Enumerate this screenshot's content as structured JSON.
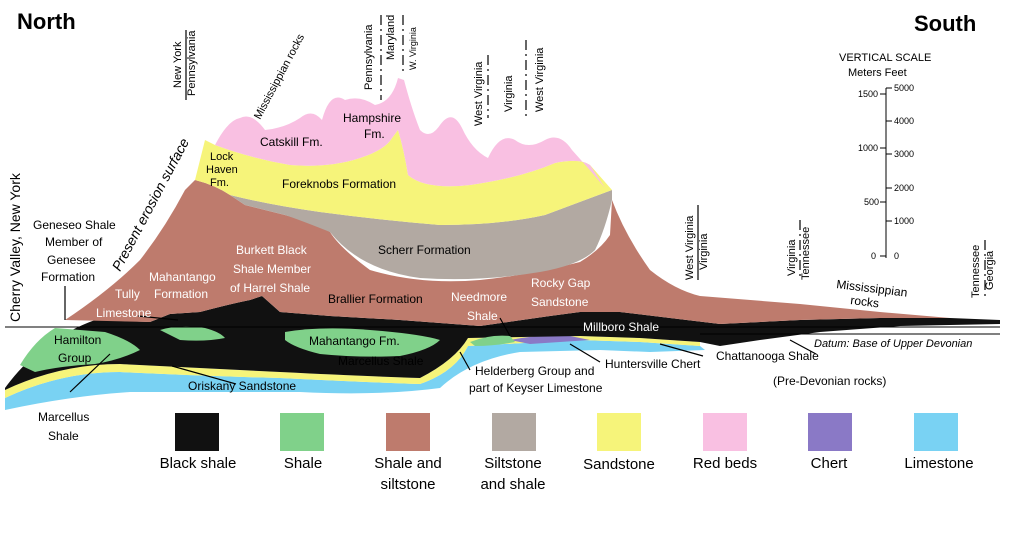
{
  "headings": {
    "north": "North",
    "south": "South"
  },
  "colors": {
    "black_shale": "#111111",
    "shale": "#80d18a",
    "shale_siltstone": "#be7b6d",
    "siltstone_shale": "#b2a9a2",
    "sandstone": "#f6f47a",
    "red_beds": "#f9c0e2",
    "chert": "#8a79c6",
    "limestone": "#79d2f3"
  },
  "boundaries": {
    "ny_pa": {
      "top": "New York",
      "bottom": "Pennsylvania"
    },
    "pa_md_wv": {
      "a": "Pennsylvania",
      "b": "Maryland",
      "c": "W. Virginia"
    },
    "wv_va_wv": {
      "a": "West Virginia",
      "b": "Virginia",
      "c": "West Virginia"
    },
    "wv_va_south": {
      "top": "West Virginia",
      "bottom": "Virginia"
    },
    "va_tn": {
      "top": "Virginia",
      "bottom": "Tennessee"
    },
    "tn_ga": {
      "top": "Tennessee",
      "bottom": "Georgia"
    }
  },
  "location": "Cherry Valley, New York",
  "erosion_surface": "Present erosion surface",
  "scale": {
    "title": "VERTICAL SCALE",
    "units": "Meters Feet",
    "meters": [
      "1500",
      "1000",
      "500",
      "0"
    ],
    "feet": [
      "5000",
      "4000",
      "3000",
      "2000",
      "1000",
      "0"
    ]
  },
  "labels": {
    "mississippian_rocks_top": "Mississippian rocks",
    "catskill": "Catskill Fm.",
    "hampshire_1": "Hampshire",
    "hampshire_2": "Fm.",
    "lock_haven_1": "Lock",
    "lock_haven_2": "Haven",
    "lock_haven_3": "Fm.",
    "foreknobs": "Foreknobs Formation",
    "scherr": "Scherr Formation",
    "brallier": "Brallier Formation",
    "burkett_1": "Burkett Black",
    "burkett_2": "Shale Member",
    "burkett_3": "of Harrel Shale",
    "mahantango_1": "Mahantango",
    "mahantango_2": "Formation",
    "tully_1": "Tully",
    "tully_2": "Limestone",
    "geneseo_1": "Geneseo Shale",
    "geneseo_2": "Member of",
    "geneseo_3": "Genesee",
    "geneseo_4": "Formation",
    "hamilton_1": "Hamilton",
    "hamilton_2": "Group",
    "marcellus_1": "Marcellus",
    "marcellus_2": "Shale",
    "oriskany": "Oriskany Sandstone",
    "mahantango_fm": "Mahantango Fm.",
    "marcellus_shale": "Marcellus Shale",
    "needmore_1": "Needmore",
    "needmore_2": "Shale",
    "rocky_gap_1": "Rocky Gap",
    "rocky_gap_2": "Sandstone",
    "millboro": "Millboro Shale",
    "huntersville": "Huntersville Chert",
    "helderberg_1": "Helderberg Group and",
    "helderberg_2": "part of Keyser Limestone",
    "chattanooga": "Chattanooga Shale",
    "pre_devonian": "(Pre-Devonian rocks)",
    "mississippian_rocks_1": "Mississippian",
    "mississippian_rocks_2": "rocks",
    "datum": "Datum: Base of Upper Devonian"
  },
  "legend": [
    {
      "line1": "Black shale",
      "line2": "",
      "color": "#111111"
    },
    {
      "line1": "Shale",
      "line2": "",
      "color": "#80d18a"
    },
    {
      "line1": "Shale and",
      "line2": "siltstone",
      "color": "#be7b6d"
    },
    {
      "line1": "Siltstone",
      "line2": "and shale",
      "color": "#b2a9a2"
    },
    {
      "line1": "Sandstone",
      "line2": "",
      "color": "#f6f47a"
    },
    {
      "line1": "Red beds",
      "line2": "",
      "color": "#f9c0e2"
    },
    {
      "line1": "Chert",
      "line2": "",
      "color": "#8a79c6"
    },
    {
      "line1": "Limestone",
      "line2": "",
      "color": "#79d2f3"
    }
  ]
}
